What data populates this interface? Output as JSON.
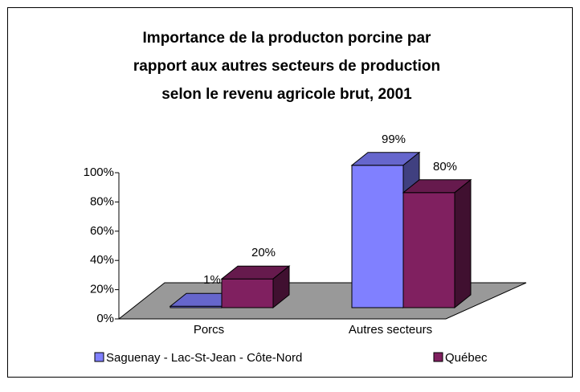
{
  "chart_data": {
    "type": "bar3d",
    "title": [
      "Importance de la producton porcine par",
      "rapport aux autres secteurs de production",
      "selon le revenu agricole brut, 2001"
    ],
    "categories": [
      "Porcs",
      "Autres secteurs"
    ],
    "series": [
      {
        "name": "Saguenay - Lac-St-Jean - Côte-Nord",
        "color": "#8080ff",
        "values": [
          1,
          99
        ],
        "value_labels": [
          "1%",
          "99%"
        ]
      },
      {
        "name": "Québec",
        "color": "#802060",
        "values": [
          20,
          80
        ],
        "value_labels": [
          "20%",
          "80%"
        ]
      }
    ],
    "ylim": [
      0,
      100
    ],
    "yticks": [
      {
        "value": 0,
        "label": "0%"
      },
      {
        "value": 20,
        "label": "20%"
      },
      {
        "value": 40,
        "label": "40%"
      },
      {
        "value": 60,
        "label": "60%"
      },
      {
        "value": 80,
        "label": "80%"
      },
      {
        "value": 100,
        "label": "100%"
      }
    ],
    "legend": "bottom"
  }
}
